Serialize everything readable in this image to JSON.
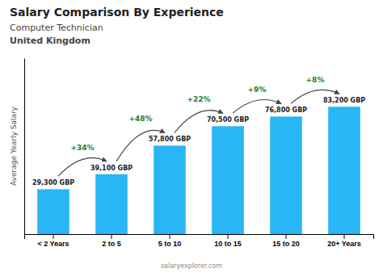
{
  "chart_data": {
    "type": "bar",
    "title": "Salary Comparison By Experience",
    "subtitle": "Computer Technician",
    "country": "United Kingdom",
    "y_label": "Average Yearly Salary",
    "source": "salaryexplorer.com",
    "categories": [
      "< 2 Years",
      "2 to 5",
      "5 to 10",
      "10 to 15",
      "15 to 20",
      "20+ Years"
    ],
    "values": [
      29300,
      39100,
      57800,
      70500,
      76800,
      83200
    ],
    "value_labels": [
      "29,300 GBP",
      "39,100 GBP",
      "57,800 GBP",
      "70,500 GBP",
      "76,800 GBP",
      "83,200 GBP"
    ],
    "data_labels": true,
    "annotations": [
      "+34%",
      "+48%",
      "+22%",
      "+9%",
      "+8%"
    ],
    "color": "#29b6f6",
    "ylim": [
      0,
      115000
    ],
    "tick_labels": "x",
    "grid": false
  }
}
